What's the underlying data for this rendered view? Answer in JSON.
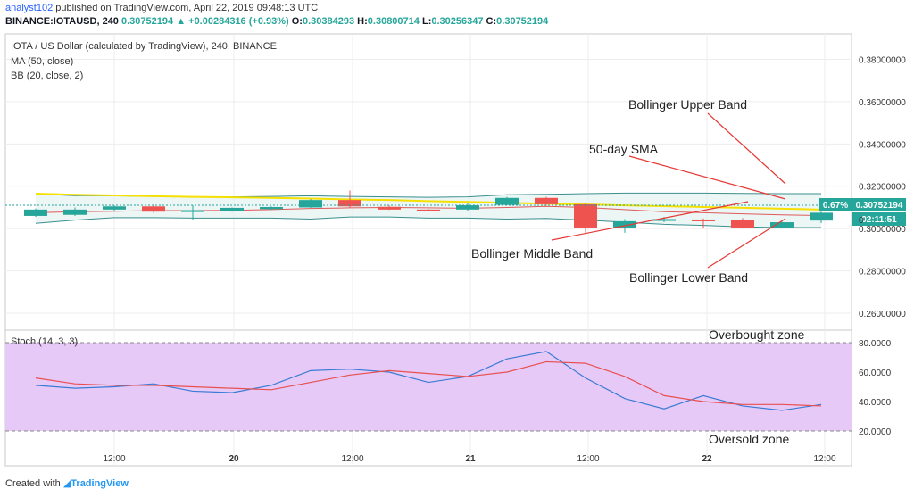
{
  "header": {
    "author": "analyst102",
    "published_text": "published on TradingView.com, April 22, 2019 09:48:13 UTC",
    "symbol": "BINANCE:IOTAUSD, 240",
    "last": "0.30752194",
    "change_arrow": "▲",
    "change": "+0.00284316 (+0.93%)",
    "o_label": "O:",
    "o_value": "0.30384293",
    "h_label": "H:",
    "h_value": "0.30800714",
    "l_label": "L:",
    "l_value": "0.30256347",
    "c_label": "C:",
    "c_value": "0.30752194"
  },
  "legend": {
    "title": "IOTA / US Dollar (calculated by TradingView), 240, BINANCE",
    "ma": "MA (50, close)",
    "bb": "BB (20, close, 2)",
    "stoch": "Stoch (14, 3, 3)"
  },
  "annotations": {
    "upper_band": "Bollinger Upper Band",
    "sma": "50-day SMA",
    "middle_band": "Bollinger Middle Band",
    "lower_band": "Bollinger Lower Band",
    "overbought": "Overbought zone",
    "oversold": "Oversold zone"
  },
  "price_badges": {
    "percent": "0.67%",
    "price": "0.30752194",
    "countdown": "02:11:51",
    "partial_label": "0"
  },
  "footer": {
    "created_with": "Created with",
    "brand": "TradingView"
  },
  "colors": {
    "bull": "#26a69a",
    "bear": "#ef5350",
    "ma": "#f5e000",
    "bb_band": "#3a8f8f",
    "bb_mid": "#e05a5a",
    "stoch_k": "#3a7bd5",
    "stoch_d": "#e85050",
    "stoch_fill": "#e6c9f7",
    "annotation_line": "#e53935"
  },
  "chart_data": [
    {
      "type": "candlestick",
      "y_ticks": [
        "0.38000000",
        "0.36000000",
        "0.34000000",
        "0.32000000",
        "0.30000000",
        "0.28000000",
        "0.26000000"
      ],
      "ylim": [
        0.252,
        0.392
      ],
      "x_ticks": [
        "12:00",
        "20",
        "12:00",
        "21",
        "12:00",
        "22",
        "12:00"
      ],
      "candles": [
        {
          "o": 0.306,
          "c": 0.309,
          "h": 0.3095,
          "l": 0.3055
        },
        {
          "o": 0.3065,
          "c": 0.309,
          "h": 0.31,
          "l": 0.306
        },
        {
          "o": 0.309,
          "c": 0.3105,
          "h": 0.311,
          "l": 0.3085
        },
        {
          "o": 0.3105,
          "c": 0.308,
          "h": 0.311,
          "l": 0.3075
        },
        {
          "o": 0.3082,
          "c": 0.3087,
          "h": 0.311,
          "l": 0.304
        },
        {
          "o": 0.3085,
          "c": 0.3098,
          "h": 0.31,
          "l": 0.308
        },
        {
          "o": 0.3092,
          "c": 0.3102,
          "h": 0.3105,
          "l": 0.3088
        },
        {
          "o": 0.31,
          "c": 0.3135,
          "h": 0.314,
          "l": 0.3098
        },
        {
          "o": 0.3135,
          "c": 0.3105,
          "h": 0.318,
          "l": 0.31
        },
        {
          "o": 0.3103,
          "c": 0.309,
          "h": 0.311,
          "l": 0.3088
        },
        {
          "o": 0.309,
          "c": 0.3085,
          "h": 0.3093,
          "l": 0.3082
        },
        {
          "o": 0.309,
          "c": 0.311,
          "h": 0.312,
          "l": 0.3085
        },
        {
          "o": 0.3112,
          "c": 0.3145,
          "h": 0.315,
          "l": 0.311
        },
        {
          "o": 0.3145,
          "c": 0.3115,
          "h": 0.315,
          "l": 0.311
        },
        {
          "o": 0.3115,
          "c": 0.3005,
          "h": 0.312,
          "l": 0.298
        },
        {
          "o": 0.3005,
          "c": 0.3035,
          "h": 0.3045,
          "l": 0.298
        },
        {
          "o": 0.3038,
          "c": 0.3045,
          "h": 0.3055,
          "l": 0.303
        },
        {
          "o": 0.3043,
          "c": 0.304,
          "h": 0.3048,
          "l": 0.3
        },
        {
          "o": 0.304,
          "c": 0.3005,
          "h": 0.305,
          "l": 0.3
        },
        {
          "o": 0.3005,
          "c": 0.303,
          "h": 0.3035,
          "l": 0.3
        },
        {
          "o": 0.3038,
          "c": 0.3075,
          "h": 0.308,
          "l": 0.3026
        }
      ],
      "ma50": [
        0.3165,
        0.316,
        0.3157,
        0.3153,
        0.315,
        0.3148,
        0.3145,
        0.3142,
        0.3138,
        0.3135,
        0.313,
        0.3126,
        0.3122,
        0.3118,
        0.3114,
        0.311,
        0.3106,
        0.3102,
        0.3098,
        0.3094,
        0.309
      ],
      "bb_upper": [
        0.3165,
        0.3155,
        0.3155,
        0.3152,
        0.315,
        0.315,
        0.3152,
        0.3155,
        0.3152,
        0.315,
        0.3148,
        0.315,
        0.316,
        0.3162,
        0.3165,
        0.3168,
        0.3168,
        0.3168,
        0.3166,
        0.3165,
        0.3165
      ],
      "bb_middle": [
        0.3075,
        0.308,
        0.3082,
        0.3085,
        0.3085,
        0.3086,
        0.309,
        0.3095,
        0.3098,
        0.31,
        0.3098,
        0.3096,
        0.31,
        0.3105,
        0.31,
        0.309,
        0.308,
        0.3075,
        0.307,
        0.3065,
        0.3062
      ],
      "bb_lower": [
        0.3025,
        0.304,
        0.3052,
        0.3052,
        0.305,
        0.305,
        0.305,
        0.3045,
        0.3055,
        0.3055,
        0.305,
        0.305,
        0.3045,
        0.3048,
        0.304,
        0.303,
        0.302,
        0.3015,
        0.3008,
        0.3005,
        0.3005
      ]
    },
    {
      "type": "line",
      "ylim": [
        10,
        90
      ],
      "y_ticks": [
        "80.0000",
        "60.0000",
        "40.0000",
        "20.0000"
      ],
      "overbought": 80,
      "oversold": 20,
      "series": [
        {
          "values": [
            51,
            49,
            50,
            52,
            47,
            46,
            51,
            61,
            62,
            60,
            53,
            57,
            69,
            74,
            56,
            42,
            35,
            44,
            37,
            34,
            38
          ]
        },
        {
          "values": [
            56,
            52,
            51,
            51,
            50,
            49,
            48,
            53,
            58,
            61,
            59,
            57,
            60,
            67,
            66,
            57,
            44,
            40,
            38,
            38,
            37
          ]
        }
      ]
    }
  ]
}
